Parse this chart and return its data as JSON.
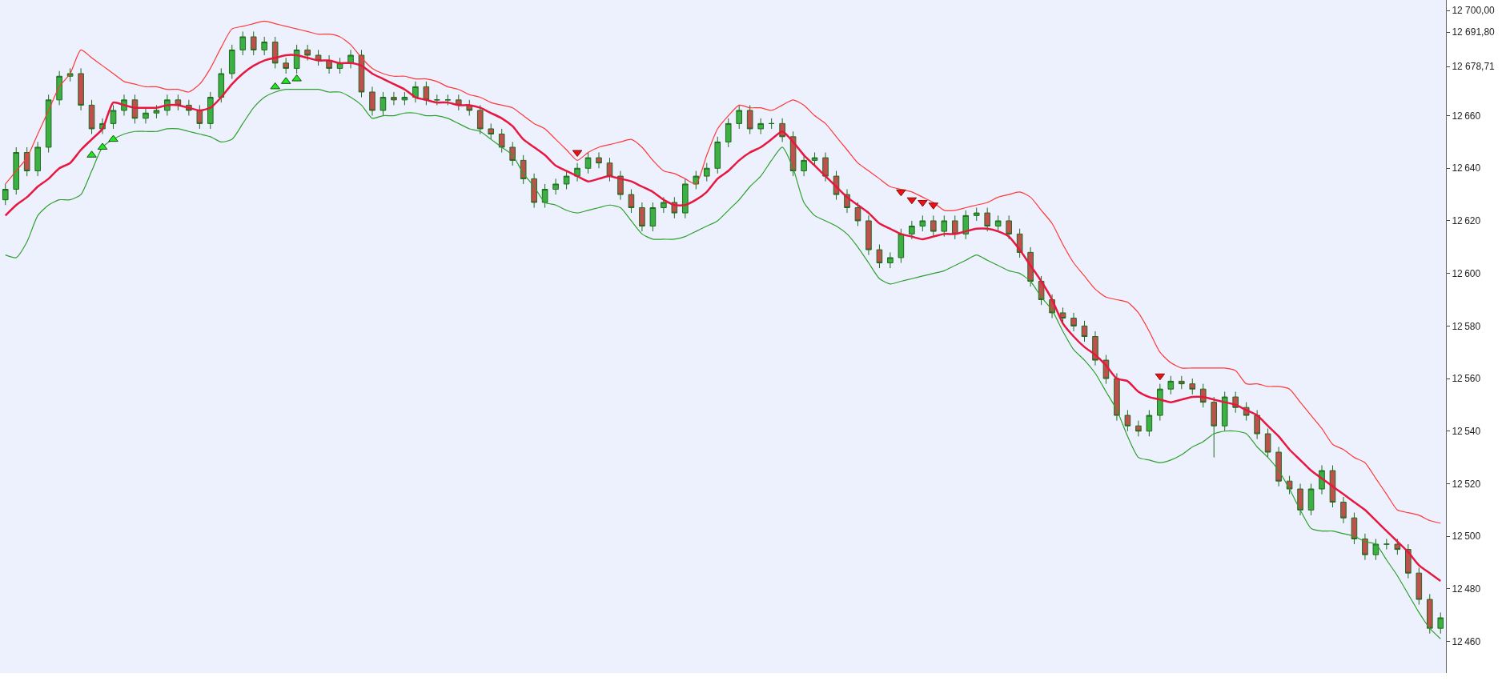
{
  "chart_data": {
    "type": "candlestick",
    "categories": [
      null,
      null,
      null,
      null,
      null,
      null,
      null,
      null,
      null,
      null,
      null,
      null,
      null,
      null,
      null,
      null,
      null,
      null,
      null,
      null,
      null,
      null,
      null,
      null,
      null,
      null,
      null,
      null,
      null,
      null,
      null,
      null,
      null,
      null,
      null,
      null,
      null,
      null,
      null,
      null,
      null,
      null,
      null,
      null,
      null,
      null,
      null,
      null,
      null,
      null,
      null,
      null,
      null,
      null,
      null,
      null,
      null,
      null,
      null,
      null,
      null,
      null,
      null,
      null,
      null,
      null,
      null,
      null,
      null,
      null,
      null,
      null,
      null,
      null,
      null,
      null,
      null,
      null,
      null,
      null,
      null,
      null,
      null,
      null,
      null,
      null,
      null,
      null,
      null,
      null,
      null,
      null,
      null,
      null,
      null,
      null,
      null,
      null,
      null,
      null,
      null,
      null,
      null,
      null,
      null,
      null,
      null,
      null,
      null,
      null,
      null,
      null,
      null,
      null,
      null,
      null,
      null,
      null,
      null,
      null,
      null,
      null,
      null,
      null,
      null,
      null,
      null,
      null,
      null,
      null,
      null,
      null,
      null,
      null
    ],
    "ohlc": [
      [
        12628,
        12634,
        12626,
        12632
      ],
      [
        12632,
        12648,
        12630,
        12646
      ],
      [
        12646,
        12648,
        12637,
        12639
      ],
      [
        12639,
        12650,
        12637,
        12648
      ],
      [
        12648,
        12668,
        12646,
        12666
      ],
      [
        12666,
        12677,
        12664,
        12675
      ],
      [
        12675,
        12678,
        12673,
        12676
      ],
      [
        12676,
        12678,
        12662,
        12664
      ],
      [
        12664,
        12666,
        12653,
        12655
      ],
      [
        12655,
        12659,
        12653,
        12657
      ],
      [
        12657,
        12664,
        12655,
        12662
      ],
      [
        12662,
        12668,
        12660,
        12666
      ],
      [
        12666,
        12668,
        12657,
        12659
      ],
      [
        12659,
        12663,
        12657,
        12661
      ],
      [
        12661,
        12664,
        12659,
        12662
      ],
      [
        12662,
        12668,
        12660,
        12666
      ],
      [
        12666,
        12668,
        12662,
        12664
      ],
      [
        12664,
        12666,
        12660,
        12662
      ],
      [
        12662,
        12664,
        12655,
        12657
      ],
      [
        12657,
        12669,
        12655,
        12667
      ],
      [
        12667,
        12678,
        12665,
        12676
      ],
      [
        12676,
        12687,
        12674,
        12685
      ],
      [
        12685,
        12692,
        12683,
        12690
      ],
      [
        12690,
        12692,
        12683,
        12685
      ],
      [
        12685,
        12690,
        12683,
        12688
      ],
      [
        12688,
        12690,
        12678,
        12680
      ],
      [
        12680,
        12682,
        12676,
        12678
      ],
      [
        12678,
        12687,
        12676,
        12685
      ],
      [
        12685,
        12687,
        12681,
        12683
      ],
      [
        12683,
        12685,
        12679,
        12681
      ],
      [
        12681,
        12683,
        12676,
        12678
      ],
      [
        12678,
        12682,
        12676,
        12680
      ],
      [
        12680,
        12685,
        12678,
        12683
      ],
      [
        12683,
        12685,
        12667,
        12669
      ],
      [
        12669,
        12671,
        12660,
        12662
      ],
      [
        12662,
        12669,
        12660,
        12667
      ],
      [
        12667,
        12669,
        12664,
        12666
      ],
      [
        12666,
        12669,
        12664,
        12667
      ],
      [
        12667,
        12673,
        12665,
        12671
      ],
      [
        12671,
        12673,
        12664,
        12666
      ],
      [
        12666,
        12668,
        12664,
        12666
      ],
      [
        12666,
        12668,
        12664,
        12666
      ],
      [
        12666,
        12668,
        12662,
        12664
      ],
      [
        12664,
        12666,
        12660,
        12662
      ],
      [
        12662,
        12664,
        12653,
        12655
      ],
      [
        12655,
        12657,
        12651,
        12653
      ],
      [
        12653,
        12655,
        12646,
        12648
      ],
      [
        12648,
        12650,
        12641,
        12643
      ],
      [
        12643,
        12645,
        12634,
        12636
      ],
      [
        12636,
        12638,
        12625,
        12627
      ],
      [
        12627,
        12634,
        12625,
        12632
      ],
      [
        12632,
        12636,
        12630,
        12634
      ],
      [
        12634,
        12639,
        12632,
        12637
      ],
      [
        12637,
        12642,
        12635,
        12640
      ],
      [
        12640,
        12646,
        12638,
        12644
      ],
      [
        12644,
        12646,
        12640,
        12642
      ],
      [
        12642,
        12644,
        12635,
        12637
      ],
      [
        12637,
        12639,
        12628,
        12630
      ],
      [
        12630,
        12632,
        12623,
        12625
      ],
      [
        12625,
        12627,
        12616,
        12618
      ],
      [
        12618,
        12627,
        12616,
        12625
      ],
      [
        12625,
        12629,
        12623,
        12627
      ],
      [
        12627,
        12629,
        12621,
        12623
      ],
      [
        12623,
        12636,
        12621,
        12634
      ],
      [
        12634,
        12639,
        12632,
        12637
      ],
      [
        12637,
        12642,
        12635,
        12640
      ],
      [
        12640,
        12652,
        12638,
        12650
      ],
      [
        12650,
        12659,
        12648,
        12657
      ],
      [
        12657,
        12664,
        12655,
        12662
      ],
      [
        12662,
        12664,
        12653,
        12655
      ],
      [
        12655,
        12659,
        12653,
        12657
      ],
      [
        12657,
        12659,
        12655,
        12657
      ],
      [
        12657,
        12659,
        12650,
        12652
      ],
      [
        12652,
        12654,
        12637,
        12639
      ],
      [
        12639,
        12645,
        12637,
        12643
      ],
      [
        12643,
        12646,
        12641,
        12644
      ],
      [
        12644,
        12646,
        12635,
        12637
      ],
      [
        12637,
        12639,
        12628,
        12630
      ],
      [
        12630,
        12632,
        12623,
        12625
      ],
      [
        12625,
        12627,
        12618,
        12620
      ],
      [
        12620,
        12622,
        12607,
        12609
      ],
      [
        12609,
        12611,
        12602,
        12604
      ],
      [
        12604,
        12608,
        12602,
        12606
      ],
      [
        12606,
        12617,
        12604,
        12615
      ],
      [
        12615,
        12620,
        12613,
        12618
      ],
      [
        12618,
        12622,
        12616,
        12620
      ],
      [
        12620,
        12622,
        12614,
        12616
      ],
      [
        12616,
        12622,
        12614,
        12620
      ],
      [
        12620,
        12622,
        12613,
        12615
      ],
      [
        12615,
        12624,
        12613,
        12622
      ],
      [
        12622,
        12625,
        12620,
        12623
      ],
      [
        12623,
        12625,
        12616,
        12618
      ],
      [
        12618,
        12622,
        12616,
        12620
      ],
      [
        12620,
        12622,
        12613,
        12615
      ],
      [
        12615,
        12617,
        12606,
        12608
      ],
      [
        12608,
        12610,
        12595,
        12597
      ],
      [
        12597,
        12599,
        12588,
        12590
      ],
      [
        12590,
        12592,
        12583,
        12585
      ],
      [
        12585,
        12587,
        12581,
        12583
      ],
      [
        12583,
        12585,
        12578,
        12580
      ],
      [
        12580,
        12582,
        12574,
        12576
      ],
      [
        12576,
        12578,
        12565,
        12567
      ],
      [
        12567,
        12569,
        12558,
        12560
      ],
      [
        12560,
        12562,
        12544,
        12546
      ],
      [
        12546,
        12548,
        12540,
        12542
      ],
      [
        12542,
        12544,
        12538,
        12540
      ],
      [
        12540,
        12548,
        12538,
        12546
      ],
      [
        12546,
        12558,
        12544,
        12556
      ],
      [
        12556,
        12561,
        12554,
        12559
      ],
      [
        12559,
        12561,
        12556,
        12558
      ],
      [
        12558,
        12560,
        12554,
        12556
      ],
      [
        12556,
        12558,
        12549,
        12551
      ],
      [
        12551,
        12553,
        12530,
        12542
      ],
      [
        12542,
        12555,
        12540,
        12553
      ],
      [
        12553,
        12555,
        12547,
        12549
      ],
      [
        12549,
        12551,
        12544,
        12546
      ],
      [
        12546,
        12548,
        12537,
        12539
      ],
      [
        12539,
        12541,
        12530,
        12532
      ],
      [
        12532,
        12534,
        12519,
        12521
      ],
      [
        12521,
        12523,
        12516,
        12518
      ],
      [
        12518,
        12520,
        12508,
        12510
      ],
      [
        12510,
        12520,
        12508,
        12518
      ],
      [
        12518,
        12527,
        12516,
        12525
      ],
      [
        12525,
        12527,
        12511,
        12513
      ],
      [
        12513,
        12515,
        12505,
        12507
      ],
      [
        12507,
        12509,
        12497,
        12499
      ],
      [
        12499,
        12501,
        12491,
        12493
      ],
      [
        12493,
        12499,
        12491,
        12497
      ],
      [
        12497,
        12499,
        12495,
        12497
      ],
      [
        12497,
        12499,
        12493,
        12495
      ],
      [
        12495,
        12497,
        12484,
        12486
      ],
      [
        12486,
        12488,
        12474,
        12476
      ],
      [
        12476,
        12478,
        12463,
        12465
      ],
      [
        12465,
        12471,
        12463,
        12469
      ]
    ],
    "series": [
      {
        "type": "line",
        "color": "#2ea02e",
        "values": [
          12607,
          12606,
          12612,
          12622,
          12626,
          12628,
          12628,
          12630,
          12639,
          12648,
          12651,
          12653,
          12654,
          12654,
          12654,
          12655,
          12655,
          12654,
          12653,
          12652,
          12650,
          12651,
          12657,
          12663,
          12667,
          12669,
          12670,
          12670,
          12670,
          12670,
          12669,
          12669,
          12667,
          12664,
          12659,
          12660,
          12660,
          12661,
          12661,
          12660,
          12660,
          12659,
          12657,
          12655,
          12654,
          12651,
          12648,
          12645,
          12638,
          12633,
          12627,
          12626,
          12624,
          12623,
          12624,
          12625,
          12626,
          12625,
          12620,
          12615,
          12613,
          12613,
          12613,
          12614,
          12616,
          12618,
          12620,
          12624,
          12628,
          12633,
          12637,
          12643,
          12648,
          12640,
          12627,
          12622,
          12620,
          12618,
          12615,
          12610,
          12604,
          12598,
          12596,
          12597,
          12598,
          12599,
          12600,
          12601,
          12603,
          12605,
          12607,
          12605,
          12603,
          12601,
          12600,
          12597,
          12591,
          12586,
          12578,
          12571,
          12567,
          12562,
          12555,
          12548,
          12538,
          12530,
          12529,
          12528,
          12529,
          12531,
          12534,
          12536,
          12539,
          12540,
          12540,
          12539,
          12534,
          12530,
          12525,
          12518,
          12510,
          12503,
          12502,
          12502,
          12501,
          12500,
          12498,
          12497,
          12491,
          12485,
          12478,
          12471,
          12465,
          12461
        ]
      },
      {
        "type": "line",
        "color": "#ff3838",
        "values": [
          12634,
          12639,
          12644,
          12653,
          12662,
          12671,
          12676,
          12685,
          12682,
          12679,
          12676,
          12673,
          12672,
          12671,
          12671,
          12670,
          12670,
          12669,
          12672,
          12678,
          12686,
          12693,
          12694,
          12695,
          12696,
          12695,
          12694,
          12693,
          12692,
          12691,
          12691,
          12690,
          12687,
          12682,
          12678,
          12676,
          12675,
          12675,
          12674,
          12674,
          12673,
          12671,
          12670,
          12668,
          12667,
          12665,
          12664,
          12663,
          12660,
          12657,
          12655,
          12651,
          12647,
          12643,
          12646,
          12648,
          12649,
          12650,
          12651,
          12648,
          12643,
          12639,
          12638,
          12636,
          12634,
          12645,
          12655,
          12660,
          12664,
          12663,
          12663,
          12662,
          12664,
          12666,
          12664,
          12660,
          12657,
          12652,
          12647,
          12642,
          12639,
          12636,
          12633,
          12632,
          12631,
          12629,
          12627,
          12624,
          12624,
          12625,
          12626,
          12627,
          12629,
          12630,
          12631,
          12629,
          12624,
          12619,
          12611,
          12604,
          12599,
          12594,
          12591,
          12590,
          12589,
          12585,
          12578,
          12570,
          12566,
          12564,
          12564,
          12564,
          12564,
          12564,
          12563,
          12558,
          12558,
          12557,
          12557,
          12556,
          12551,
          12546,
          12541,
          12535,
          12533,
          12530,
          12528,
          12522,
          12516,
          12510,
          12509,
          12508,
          12506,
          12505
        ]
      },
      {
        "type": "line",
        "color": "#e8173f",
        "values": [
          12622,
          12626,
          12629,
          12633,
          12636,
          12640,
          12642,
          12647,
          12651,
          12655,
          12665,
          12664,
          12663,
          12663,
          12663,
          12664,
          12664,
          12663,
          12662,
          12663,
          12667,
          12672,
          12676,
          12679,
          12681,
          12682,
          12683,
          12683,
          12682,
          12681,
          12681,
          12680,
          12680,
          12679,
          12676,
          12674,
          12672,
          12670,
          12667,
          12666,
          12665,
          12665,
          12664,
          12664,
          12663,
          12661,
          12659,
          12656,
          12651,
          12648,
          12645,
          12641,
          12639,
          12637,
          12635,
          12636,
          12637,
          12636,
          12635,
          12633,
          12631,
          12628,
          12626,
          12626,
          12628,
          12631,
          12636,
          12639,
          12643,
          12646,
          12648,
          12651,
          12654,
          12650,
          12645,
          12641,
          12637,
          12633,
          12629,
          12626,
          12623,
          12619,
          12617,
          12615,
          12614,
          12613,
          12614,
          12615,
          12615,
          12616,
          12617,
          12617,
          12616,
          12614,
          12609,
          12603,
          12597,
          12590,
          12581,
          12576,
          12572,
          12569,
          12565,
          12560,
          12559,
          12555,
          12553,
          12552,
          12551,
          12552,
          12553,
          12553,
          12552,
          12551,
          12550,
          12548,
          12546,
          12542,
          12538,
          12533,
          12529,
          12525,
          12522,
          12519,
          12516,
          12513,
          12510,
          12506,
          12502,
          12498,
          12494,
          12489,
          12486,
          12483
        ]
      },
      {
        "type": "scatter",
        "marker": "triangle",
        "color": "#22e622",
        "values": [
          null,
          null,
          null,
          null,
          null,
          null,
          null,
          null,
          12645,
          12648,
          12651,
          null,
          null,
          null,
          null,
          null,
          null,
          null,
          null,
          null,
          null,
          null,
          null,
          null,
          null,
          12671,
          12673,
          12674,
          null,
          null,
          null,
          null,
          null,
          null,
          null,
          null,
          null,
          null,
          null,
          null,
          null,
          null,
          null,
          null,
          null,
          null,
          null,
          null,
          null,
          null,
          null,
          null,
          null,
          null,
          null,
          null,
          null,
          null,
          null,
          null,
          null,
          null,
          null,
          null,
          null,
          null,
          null,
          null,
          null,
          null,
          null,
          null,
          null,
          null,
          null,
          null,
          null,
          null,
          null,
          null,
          null,
          null,
          null,
          null,
          null,
          null,
          null,
          null,
          null,
          null,
          null,
          null,
          null,
          null,
          null,
          null,
          null,
          null,
          null,
          null,
          null,
          null,
          null,
          null,
          null,
          null,
          null,
          null,
          null,
          null,
          null,
          null,
          null,
          null,
          null,
          null,
          null,
          null,
          null,
          null,
          null,
          null,
          null,
          null,
          null,
          null,
          null,
          null,
          null,
          null,
          null,
          null,
          null,
          null
        ]
      },
      {
        "type": "scatter",
        "marker": "triangle-down",
        "color": "#ee1111",
        "values": [
          null,
          null,
          null,
          null,
          null,
          null,
          null,
          null,
          null,
          null,
          null,
          null,
          null,
          null,
          null,
          null,
          null,
          null,
          null,
          null,
          null,
          null,
          null,
          null,
          null,
          null,
          null,
          null,
          null,
          null,
          null,
          null,
          null,
          null,
          null,
          null,
          null,
          null,
          null,
          null,
          null,
          null,
          null,
          null,
          null,
          null,
          null,
          null,
          null,
          null,
          null,
          null,
          null,
          12646,
          null,
          null,
          null,
          null,
          null,
          null,
          null,
          null,
          null,
          null,
          null,
          null,
          null,
          null,
          null,
          null,
          null,
          null,
          null,
          null,
          null,
          null,
          null,
          null,
          null,
          null,
          null,
          null,
          null,
          12631,
          12628,
          12627,
          12626,
          null,
          null,
          null,
          null,
          null,
          null,
          null,
          null,
          null,
          null,
          null,
          null,
          null,
          null,
          null,
          null,
          null,
          null,
          null,
          null,
          12561,
          null,
          null,
          null,
          null,
          null,
          null,
          null,
          null,
          null,
          null,
          null,
          null,
          null,
          null,
          null,
          null,
          null,
          null,
          null,
          null,
          null,
          null,
          null,
          null,
          null,
          null
        ]
      }
    ],
    "ylim": [
      12448,
      12704
    ],
    "yticks": [
      12460,
      12480,
      12500,
      12520,
      12540,
      12560,
      12580,
      12600,
      12620,
      12640,
      12660,
      {
        "value": 12678.71,
        "label": "12 678,71"
      },
      {
        "value": 12691.8,
        "label": "12 691,80"
      },
      {
        "value": 12700,
        "label": "12 700,00"
      }
    ],
    "tick_labels": "y",
    "grid": false
  }
}
